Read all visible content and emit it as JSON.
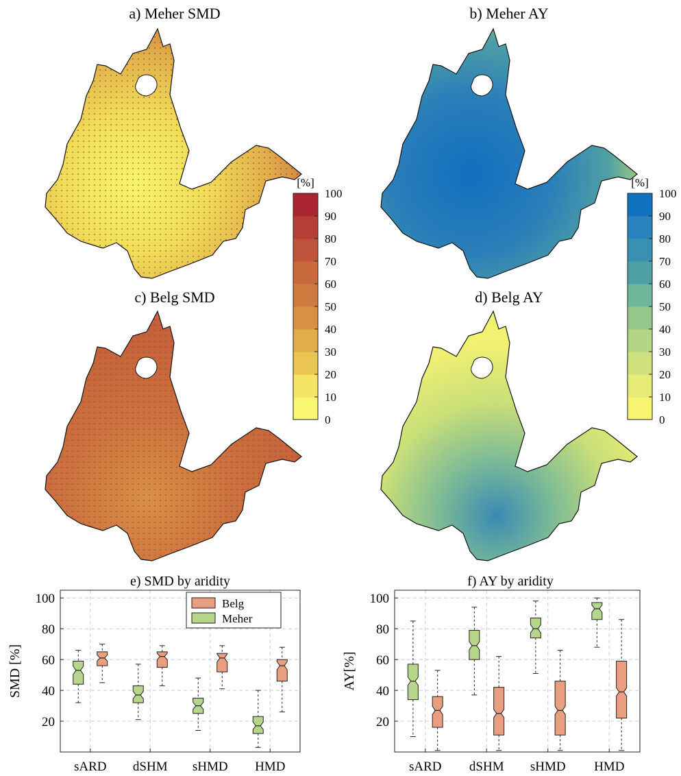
{
  "panels": {
    "a": {
      "title": "a) Meher SMD"
    },
    "b": {
      "title": "b) Meher AY"
    },
    "c": {
      "title": "c) Belg SMD"
    },
    "d": {
      "title": "d) Belg AY"
    }
  },
  "colorbars": [
    {
      "label": "[%]",
      "ticks": [
        "0",
        "10",
        "20",
        "30",
        "40",
        "50",
        "60",
        "70",
        "80",
        "90",
        "100"
      ],
      "colors": [
        "#f9f671",
        "#f6e466",
        "#ebc553",
        "#e2ac4b",
        "#d98f44",
        "#cf7a3f",
        "#c96a3c",
        "#be523a",
        "#b53e36",
        "#a92630"
      ]
    },
    {
      "label": "[%]",
      "ticks": [
        "0",
        "10",
        "20",
        "30",
        "40",
        "50",
        "60",
        "70",
        "80",
        "90",
        "100"
      ],
      "colors": [
        "#f7f471",
        "#e6ec76",
        "#cfe17d",
        "#b4d583",
        "#94c78a",
        "#70b69a",
        "#4fa0a4",
        "#3990b1",
        "#2b83bd",
        "#1372c0"
      ]
    }
  ],
  "colors": {
    "belg": "#ea9e80",
    "meher": "#b5d68b",
    "grid": "#c8c8e6",
    "smd_meher_fill": "#f1d84e",
    "smd_belg_fill": "#c9633b",
    "ay_meher_fill": "#2c7fb3",
    "ay_belg_fill": "#cde06f"
  },
  "chart_data": [
    {
      "type": "box",
      "title": "e) SMD by aridity",
      "ylabel": "SMD [%]",
      "xlabel": "",
      "categories": [
        "sARD",
        "dSHM",
        "sHMD",
        "HMD"
      ],
      "yticks": [
        20,
        40,
        60,
        80,
        100
      ],
      "ylim": [
        0,
        105
      ],
      "grid": true,
      "legend": {
        "position": "top-right",
        "entries": [
          "Belg",
          "Meher"
        ]
      },
      "series": [
        {
          "name": "Meher",
          "boxes": [
            {
              "min": 32,
              "q1": 44,
              "median": 53,
              "q3": 59,
              "max": 66
            },
            {
              "min": 21,
              "q1": 32,
              "median": 37,
              "q3": 43,
              "max": 57
            },
            {
              "min": 14,
              "q1": 25,
              "median": 30,
              "q3": 35,
              "max": 48
            },
            {
              "min": 3,
              "q1": 12,
              "median": 17,
              "q3": 23,
              "max": 40
            }
          ]
        },
        {
          "name": "Belg",
          "boxes": [
            {
              "min": 45,
              "q1": 56,
              "median": 61,
              "q3": 65,
              "max": 70
            },
            {
              "min": 43,
              "q1": 55,
              "median": 62,
              "q3": 65,
              "max": 69
            },
            {
              "min": 41,
              "q1": 52,
              "median": 61,
              "q3": 64,
              "max": 69
            },
            {
              "min": 26,
              "q1": 46,
              "median": 56,
              "q3": 60,
              "max": 68
            }
          ]
        }
      ]
    },
    {
      "type": "box",
      "title": "f) AY by aridity",
      "ylabel": "AY[%]",
      "xlabel": "",
      "categories": [
        "sARD",
        "dSHM",
        "sHMD",
        "HMD"
      ],
      "yticks": [
        20,
        40,
        60,
        80,
        100
      ],
      "ylim": [
        0,
        105
      ],
      "grid": true,
      "series": [
        {
          "name": "Meher",
          "boxes": [
            {
              "min": 10,
              "q1": 34,
              "median": 46,
              "q3": 57,
              "max": 85
            },
            {
              "min": 37,
              "q1": 60,
              "median": 69,
              "q3": 79,
              "max": 94
            },
            {
              "min": 51,
              "q1": 74,
              "median": 80,
              "q3": 87,
              "max": 98
            },
            {
              "min": 68,
              "q1": 86,
              "median": 93,
              "q3": 97,
              "max": 100
            }
          ]
        },
        {
          "name": "Belg",
          "boxes": [
            {
              "min": 1,
              "q1": 16,
              "median": 27,
              "q3": 36,
              "max": 53
            },
            {
              "min": 1,
              "q1": 11,
              "median": 25,
              "q3": 42,
              "max": 62
            },
            {
              "min": 1,
              "q1": 11,
              "median": 27,
              "q3": 46,
              "max": 66
            },
            {
              "min": 1,
              "q1": 22,
              "median": 39,
              "q3": 59,
              "max": 86
            }
          ]
        }
      ]
    }
  ]
}
